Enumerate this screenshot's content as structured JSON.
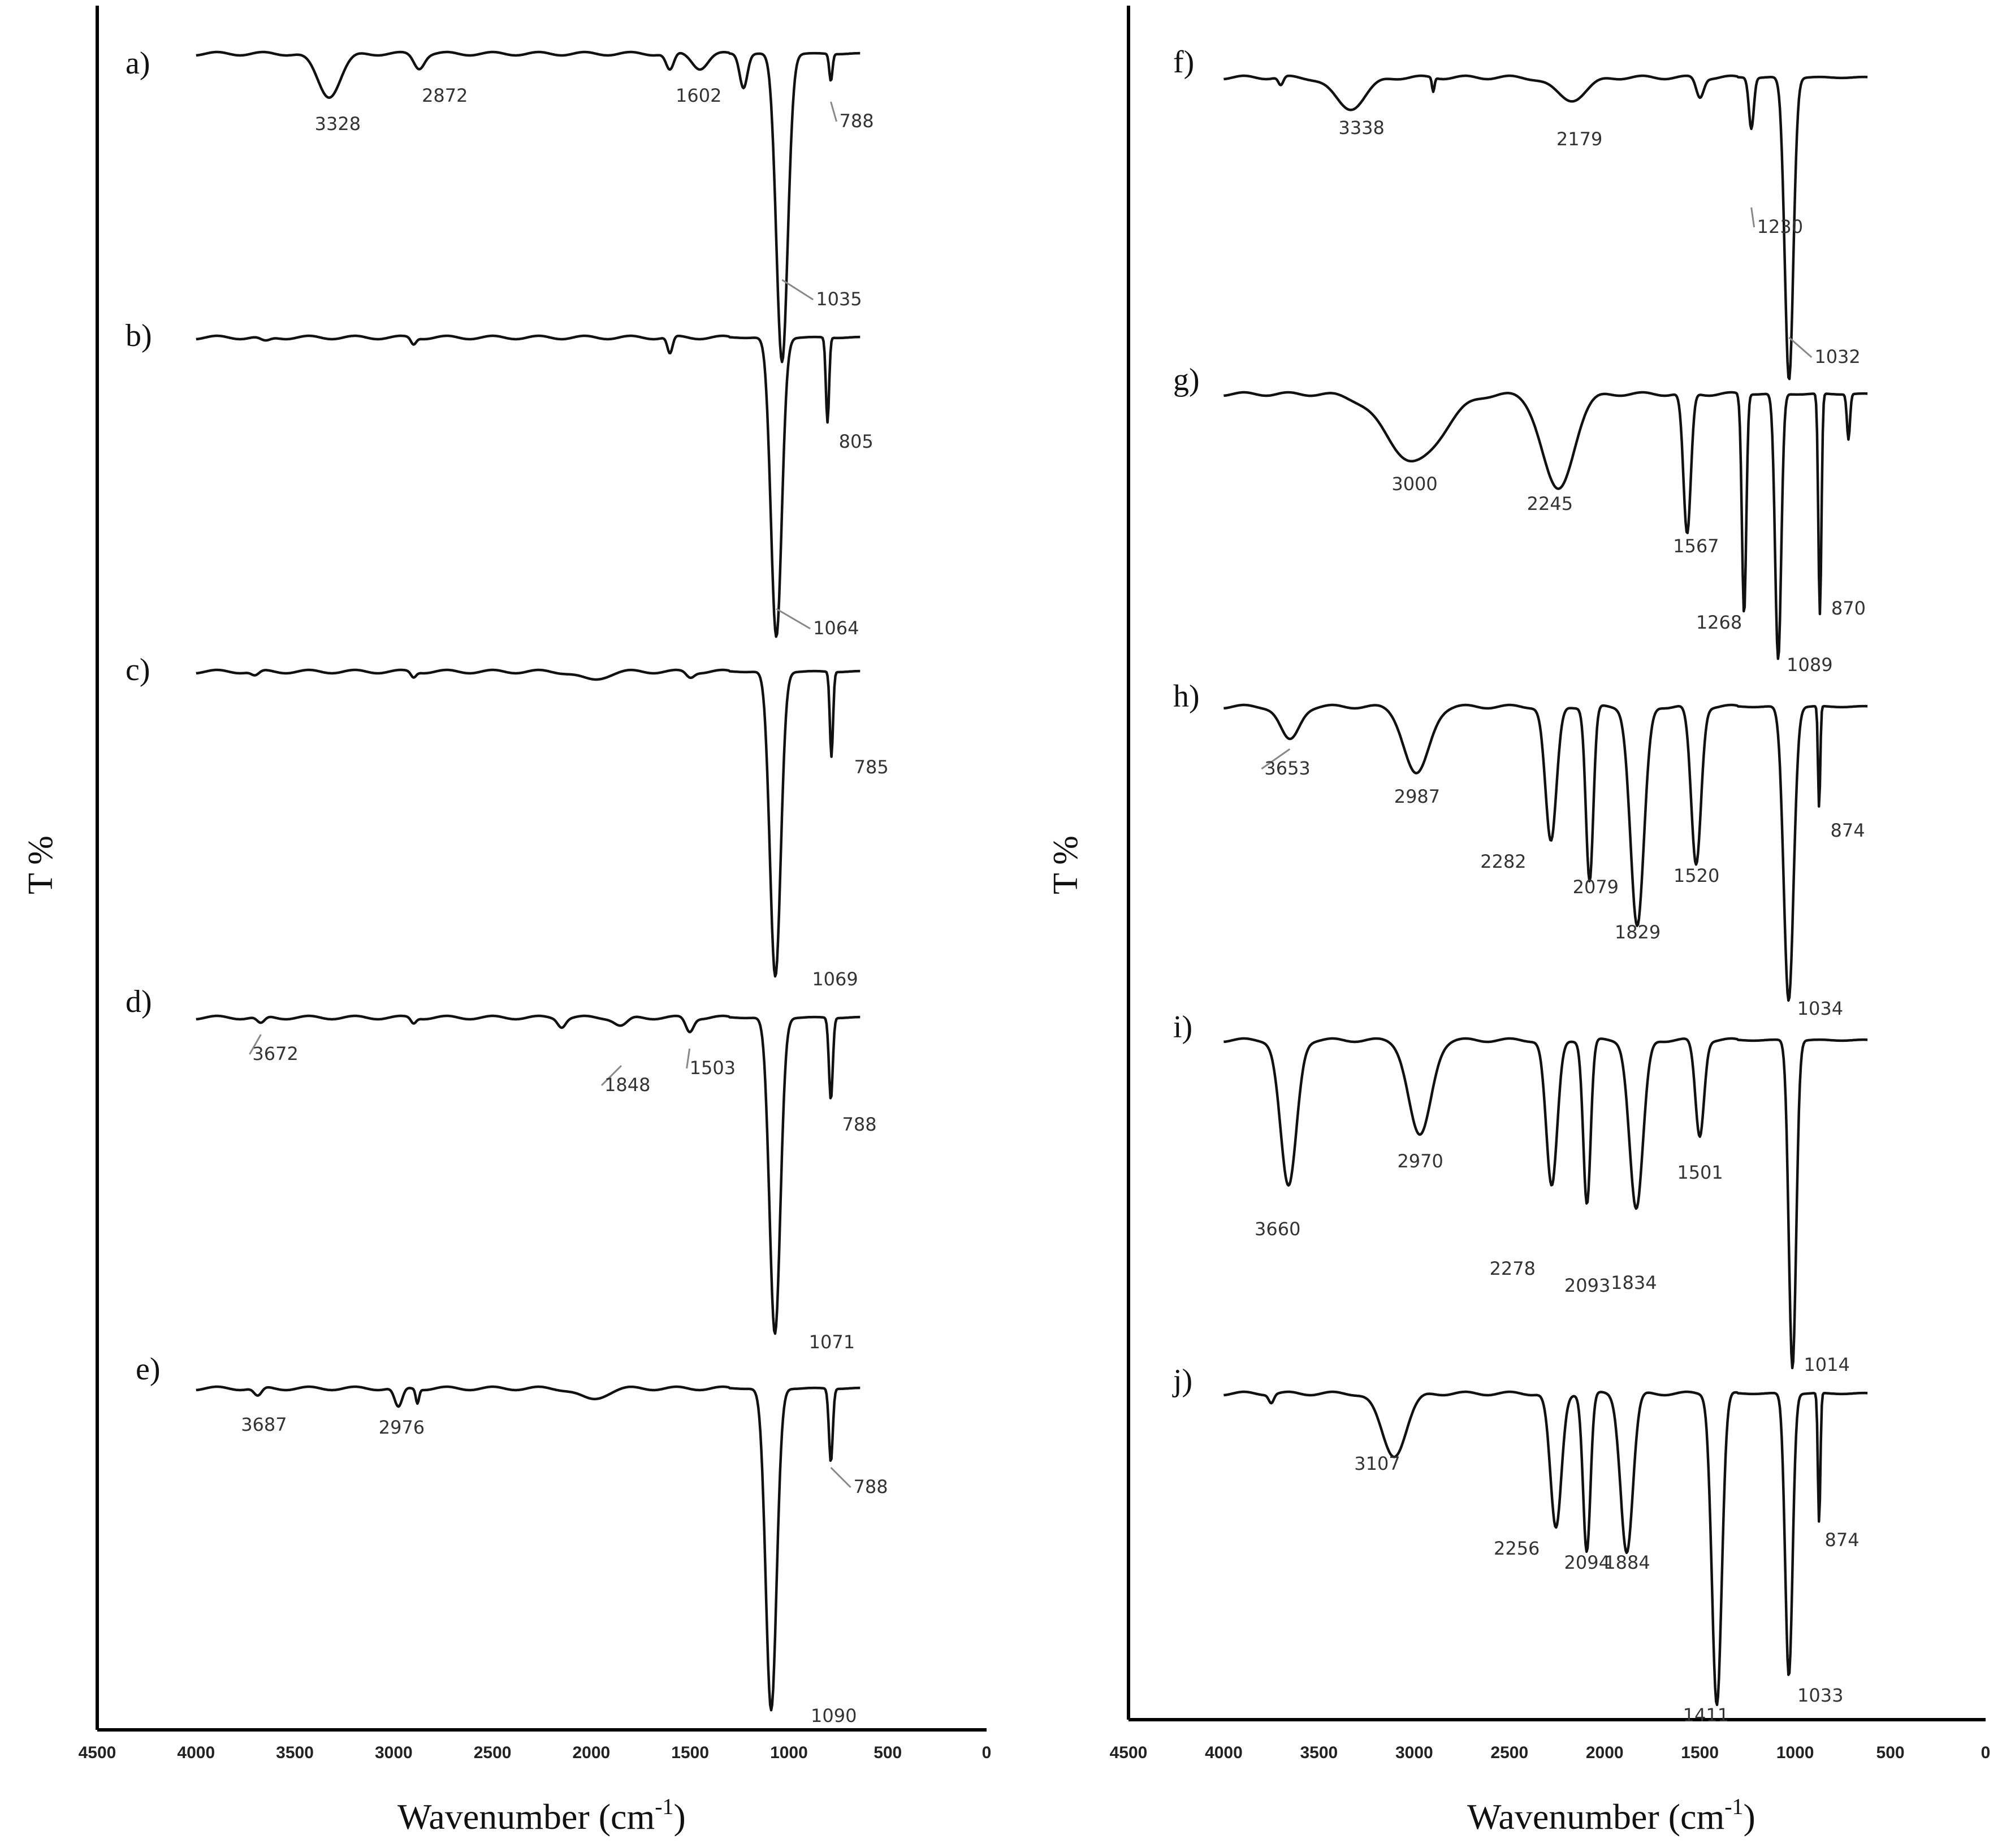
{
  "chart_data": [
    {
      "type": "line",
      "ylabel": "T %",
      "xlabel": "Wavenumber (cm",
      "xlabel_sup": "-1",
      "xlabel_suffix": ")",
      "xlim": [
        4500,
        0
      ],
      "x_ticks": [
        "4500",
        "4000",
        "3500",
        "3000",
        "2500",
        "2000",
        "1500",
        "1000",
        "500",
        "0"
      ],
      "series": [
        {
          "name": "a)",
          "scale": 1.0,
          "peaks": [
            3328,
            2872,
            1602,
            788,
            1035
          ]
        },
        {
          "name": "b)",
          "scale": 1.0,
          "peaks": [
            805,
            1064
          ]
        },
        {
          "name": "c)",
          "scale": 1.0,
          "peaks": [
            785,
            1069
          ]
        },
        {
          "name": "d)",
          "scale": 1.0,
          "peaks": [
            3672,
            1848,
            1503,
            788,
            1071
          ]
        },
        {
          "name": "e)",
          "scale": 1.0,
          "peaks": [
            3687,
            2976,
            788,
            1090
          ]
        }
      ]
    },
    {
      "type": "line",
      "ylabel": "T %",
      "xlabel": "Wavenumber (cm",
      "xlabel_sup": "-1",
      "xlabel_suffix": ")",
      "xlim": [
        4500,
        0
      ],
      "x_ticks": [
        "4500",
        "4000",
        "3500",
        "3000",
        "2500",
        "2000",
        "1500",
        "1000",
        "500",
        "0"
      ],
      "series": [
        {
          "name": "f)",
          "peaks": [
            3338,
            2179,
            1230,
            1032
          ]
        },
        {
          "name": "g)",
          "peaks": [
            3000,
            2245,
            1567,
            1268,
            870,
            1089
          ]
        },
        {
          "name": "h)",
          "peaks": [
            3653,
            2987,
            2282,
            2079,
            1829,
            1520,
            874,
            1034
          ]
        },
        {
          "name": "i)",
          "peaks": [
            3660,
            2970,
            2278,
            2093,
            1834,
            1501,
            1014
          ]
        },
        {
          "name": "j)",
          "peaks": [
            3107,
            2256,
            2094,
            1884,
            874,
            1411,
            1033
          ]
        }
      ]
    }
  ]
}
